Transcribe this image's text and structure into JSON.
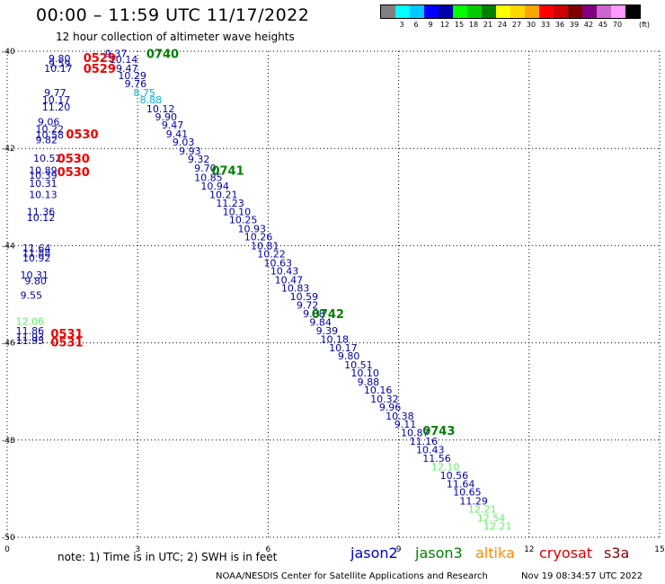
{
  "header": {
    "title": "00:00 – 11:59 UTC 11/17/2022",
    "subtitle": "12 hour collection of altimeter wave heights"
  },
  "legend": {
    "unit": "(ft)",
    "swatches": [
      {
        "color": "#808080",
        "label": ""
      },
      {
        "color": "#00ffff",
        "label": "3"
      },
      {
        "color": "#00c8ff",
        "label": "6"
      },
      {
        "color": "#0000ff",
        "label": "9"
      },
      {
        "color": "#0000aa",
        "label": "12"
      },
      {
        "color": "#00ff00",
        "label": "15"
      },
      {
        "color": "#00cc00",
        "label": "18"
      },
      {
        "color": "#008000",
        "label": "21"
      },
      {
        "color": "#ffff00",
        "label": "24"
      },
      {
        "color": "#ffd700",
        "label": "27"
      },
      {
        "color": "#ffa500",
        "label": "30"
      },
      {
        "color": "#ff0000",
        "label": "33"
      },
      {
        "color": "#cc0000",
        "label": "36"
      },
      {
        "color": "#800000",
        "label": "39"
      },
      {
        "color": "#800080",
        "label": "42"
      },
      {
        "color": "#cc66cc",
        "label": "45"
      },
      {
        "color": "#ff99ff",
        "label": "70"
      },
      {
        "color": "#000000",
        "label": ""
      }
    ]
  },
  "footer": {
    "note": "note:  1) Time is in UTC;  2) SWH is in feet",
    "satellites": [
      {
        "name": "jason2",
        "color": "#0000cc"
      },
      {
        "name": "jason3",
        "color": "#008000"
      },
      {
        "name": "altika",
        "color": "#ff8c00"
      },
      {
        "name": "cryosat",
        "color": "#dd0000"
      },
      {
        "name": "s3a",
        "color": "#8b0000"
      }
    ],
    "credit": "NOAA/NESDIS Center for Satellite Applications and Research",
    "timestamp": "Nov 19 08:34:57 UTC 2022"
  },
  "chart_data": {
    "type": "scatter",
    "xlim": [
      0,
      15
    ],
    "ylim": [
      -50,
      -40
    ],
    "x_ticks": [
      {
        "value": 0,
        "label": "0"
      },
      {
        "value": 3,
        "label": "3"
      },
      {
        "value": 6,
        "label": "6"
      },
      {
        "value": 9,
        "label": "9"
      },
      {
        "value": 12,
        "label": "12"
      },
      {
        "value": 15,
        "label": "15"
      }
    ],
    "y_ticks": [
      {
        "value": -40,
        "label": "-40"
      },
      {
        "value": -42,
        "label": "-42"
      },
      {
        "value": -44,
        "label": "-44"
      },
      {
        "value": -46,
        "label": "-46"
      },
      {
        "value": -48,
        "label": "-48"
      },
      {
        "value": -50,
        "label": "-50"
      }
    ],
    "grid": true,
    "colors": {
      "navy": "#0000aa",
      "cyan": "#00b4dc",
      "green": "#66ee66",
      "red": "#ee0000",
      "darkgreen": "#008000"
    },
    "time_labels": [
      {
        "x": 3.2,
        "y": -40.05,
        "text": "0740",
        "color": "darkgreen"
      },
      {
        "x": 1.75,
        "y": -40.13,
        "text": "0529",
        "color": "red"
      },
      {
        "x": 1.75,
        "y": -40.35,
        "text": "0529",
        "color": "red"
      },
      {
        "x": 1.35,
        "y": -41.7,
        "text": "0530",
        "color": "red"
      },
      {
        "x": 1.15,
        "y": -42.2,
        "text": "0530",
        "color": "red"
      },
      {
        "x": 1.15,
        "y": -42.48,
        "text": "0530",
        "color": "red"
      },
      {
        "x": 4.7,
        "y": -42.45,
        "text": "0741",
        "color": "darkgreen"
      },
      {
        "x": 1.0,
        "y": -45.8,
        "text": "0531",
        "color": "red"
      },
      {
        "x": 1.0,
        "y": -45.98,
        "text": "0531",
        "color": "red"
      },
      {
        "x": 7.0,
        "y": -45.4,
        "text": "0742",
        "color": "darkgreen"
      },
      {
        "x": 9.55,
        "y": -47.8,
        "text": "0743",
        "color": "darkgreen"
      }
    ],
    "series": [
      {
        "name": "jason2",
        "points": [
          {
            "x": 0.95,
            "y": -40.15,
            "v": "9.80",
            "c": "navy"
          },
          {
            "x": 0.95,
            "y": -40.25,
            "v": "9.59",
            "c": "navy"
          },
          {
            "x": 0.85,
            "y": -40.35,
            "v": "10.17",
            "c": "navy"
          },
          {
            "x": 0.85,
            "y": -40.85,
            "v": "9.77",
            "c": "navy"
          },
          {
            "x": 0.8,
            "y": -41.0,
            "v": "10.17",
            "c": "navy"
          },
          {
            "x": 0.8,
            "y": -41.15,
            "v": "11.20",
            "c": "navy"
          },
          {
            "x": 0.7,
            "y": -41.45,
            "v": "9.06",
            "c": "navy"
          },
          {
            "x": 0.65,
            "y": -41.6,
            "v": "10.22",
            "c": "navy"
          },
          {
            "x": 0.65,
            "y": -41.72,
            "v": "10.58",
            "c": "navy"
          },
          {
            "x": 0.65,
            "y": -41.82,
            "v": "9.82",
            "c": "navy"
          },
          {
            "x": 0.6,
            "y": -42.2,
            "v": "10.52",
            "c": "navy"
          },
          {
            "x": 0.5,
            "y": -42.45,
            "v": "10.89",
            "c": "navy"
          },
          {
            "x": 0.5,
            "y": -42.55,
            "v": "10.39",
            "c": "navy"
          },
          {
            "x": 0.5,
            "y": -42.72,
            "v": "10.31",
            "c": "navy"
          },
          {
            "x": 0.5,
            "y": -42.95,
            "v": "10.13",
            "c": "navy"
          },
          {
            "x": 0.45,
            "y": -43.3,
            "v": "11.36",
            "c": "navy"
          },
          {
            "x": 0.45,
            "y": -43.42,
            "v": "10.12",
            "c": "navy"
          },
          {
            "x": 0.35,
            "y": -44.05,
            "v": "11.64",
            "c": "navy"
          },
          {
            "x": 0.35,
            "y": -44.15,
            "v": "11.88",
            "c": "navy"
          },
          {
            "x": 0.35,
            "y": -44.25,
            "v": "10.92",
            "c": "navy"
          },
          {
            "x": 0.3,
            "y": -44.6,
            "v": "10.31",
            "c": "navy"
          },
          {
            "x": 0.4,
            "y": -44.72,
            "v": "9.80",
            "c": "navy"
          },
          {
            "x": 0.3,
            "y": -45.02,
            "v": "9.55",
            "c": "navy"
          },
          {
            "x": 0.2,
            "y": -45.55,
            "v": "12.06",
            "c": "green"
          },
          {
            "x": 0.2,
            "y": -45.75,
            "v": "11.86",
            "c": "navy"
          },
          {
            "x": 0.2,
            "y": -45.88,
            "v": "11.93",
            "c": "navy"
          },
          {
            "x": 0.2,
            "y": -45.95,
            "v": "11.95",
            "c": "navy"
          }
        ]
      },
      {
        "name": "jason3",
        "points": [
          {
            "x": 2.25,
            "y": -40.05,
            "v": "9.37",
            "c": "navy"
          },
          {
            "x": 2.35,
            "y": -40.17,
            "v": "10.14",
            "c": "navy"
          },
          {
            "x": 2.5,
            "y": -40.35,
            "v": "9.47",
            "c": "navy"
          },
          {
            "x": 2.55,
            "y": -40.5,
            "v": "10.29",
            "c": "navy"
          },
          {
            "x": 2.7,
            "y": -40.67,
            "v": "9.76",
            "c": "navy"
          },
          {
            "x": 2.9,
            "y": -40.85,
            "v": "8.75",
            "c": "cyan"
          },
          {
            "x": 3.05,
            "y": -41.0,
            "v": "8.88",
            "c": "cyan"
          },
          {
            "x": 3.2,
            "y": -41.18,
            "v": "10.12",
            "c": "navy"
          },
          {
            "x": 3.4,
            "y": -41.35,
            "v": "9.90",
            "c": "navy"
          },
          {
            "x": 3.55,
            "y": -41.52,
            "v": "9.47",
            "c": "navy"
          },
          {
            "x": 3.65,
            "y": -41.7,
            "v": "9.41",
            "c": "navy"
          },
          {
            "x": 3.8,
            "y": -41.87,
            "v": "9.03",
            "c": "navy"
          },
          {
            "x": 3.95,
            "y": -42.05,
            "v": "9.93",
            "c": "navy"
          },
          {
            "x": 4.15,
            "y": -42.22,
            "v": "9.32",
            "c": "navy"
          },
          {
            "x": 4.3,
            "y": -42.4,
            "v": "9.70",
            "c": "navy"
          },
          {
            "x": 4.3,
            "y": -42.6,
            "v": "10.85",
            "c": "navy"
          },
          {
            "x": 4.45,
            "y": -42.77,
            "v": "10.94",
            "c": "navy"
          },
          {
            "x": 4.65,
            "y": -42.95,
            "v": "10.21",
            "c": "navy"
          },
          {
            "x": 4.8,
            "y": -43.12,
            "v": "11.23",
            "c": "navy"
          },
          {
            "x": 4.95,
            "y": -43.3,
            "v": "10.10",
            "c": "navy"
          },
          {
            "x": 5.1,
            "y": -43.47,
            "v": "10.25",
            "c": "navy"
          },
          {
            "x": 5.3,
            "y": -43.65,
            "v": "10.93",
            "c": "navy"
          },
          {
            "x": 5.45,
            "y": -43.82,
            "v": "10.26",
            "c": "navy"
          },
          {
            "x": 5.6,
            "y": -44.0,
            "v": "10.81",
            "c": "navy"
          },
          {
            "x": 5.75,
            "y": -44.17,
            "v": "10.22",
            "c": "navy"
          },
          {
            "x": 5.9,
            "y": -44.35,
            "v": "10.63",
            "c": "navy"
          },
          {
            "x": 6.05,
            "y": -44.52,
            "v": "10.43",
            "c": "navy"
          },
          {
            "x": 6.15,
            "y": -44.7,
            "v": "10.47",
            "c": "navy"
          },
          {
            "x": 6.3,
            "y": -44.87,
            "v": "10.83",
            "c": "navy"
          },
          {
            "x": 6.5,
            "y": -45.05,
            "v": "10.59",
            "c": "navy"
          },
          {
            "x": 6.65,
            "y": -45.22,
            "v": "9.72",
            "c": "navy"
          },
          {
            "x": 6.8,
            "y": -45.4,
            "v": "9.88",
            "c": "navy"
          },
          {
            "x": 6.95,
            "y": -45.57,
            "v": "9.84",
            "c": "navy"
          },
          {
            "x": 7.1,
            "y": -45.75,
            "v": "9.39",
            "c": "navy"
          },
          {
            "x": 7.2,
            "y": -45.92,
            "v": "10.18",
            "c": "navy"
          },
          {
            "x": 7.4,
            "y": -46.1,
            "v": "10.17",
            "c": "navy"
          },
          {
            "x": 7.6,
            "y": -46.27,
            "v": "9.80",
            "c": "navy"
          },
          {
            "x": 7.75,
            "y": -46.45,
            "v": "10.51",
            "c": "navy"
          },
          {
            "x": 7.9,
            "y": -46.62,
            "v": "10.10",
            "c": "navy"
          },
          {
            "x": 8.05,
            "y": -46.8,
            "v": "9.88",
            "c": "navy"
          },
          {
            "x": 8.2,
            "y": -46.97,
            "v": "10.16",
            "c": "navy"
          },
          {
            "x": 8.35,
            "y": -47.15,
            "v": "10.32",
            "c": "navy"
          },
          {
            "x": 8.55,
            "y": -47.32,
            "v": "9.96",
            "c": "navy"
          },
          {
            "x": 8.7,
            "y": -47.5,
            "v": "10.38",
            "c": "navy"
          },
          {
            "x": 8.9,
            "y": -47.67,
            "v": "9.11",
            "c": "navy"
          },
          {
            "x": 9.05,
            "y": -47.85,
            "v": "10.87",
            "c": "navy"
          },
          {
            "x": 9.25,
            "y": -48.02,
            "v": "11.16",
            "c": "navy"
          },
          {
            "x": 9.4,
            "y": -48.2,
            "v": "10.43",
            "c": "navy"
          },
          {
            "x": 9.55,
            "y": -48.37,
            "v": "11.56",
            "c": "navy"
          },
          {
            "x": 9.75,
            "y": -48.55,
            "v": "12.10",
            "c": "green"
          },
          {
            "x": 9.95,
            "y": -48.72,
            "v": "10.56",
            "c": "navy"
          },
          {
            "x": 10.1,
            "y": -48.9,
            "v": "11.64",
            "c": "navy"
          },
          {
            "x": 10.25,
            "y": -49.07,
            "v": "10.65",
            "c": "navy"
          },
          {
            "x": 10.4,
            "y": -49.25,
            "v": "11.29",
            "c": "navy"
          },
          {
            "x": 10.6,
            "y": -49.42,
            "v": "12.21",
            "c": "green"
          },
          {
            "x": 10.8,
            "y": -49.6,
            "v": "12.54",
            "c": "green"
          },
          {
            "x": 10.95,
            "y": -49.77,
            "v": "12.21",
            "c": "green"
          }
        ]
      }
    ]
  }
}
